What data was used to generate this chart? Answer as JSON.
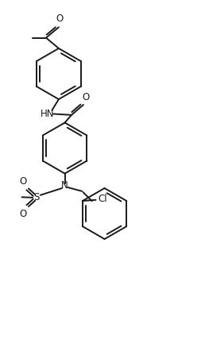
{
  "background_color": "#ffffff",
  "line_color": "#1a1a1a",
  "line_width": 1.4,
  "font_size": 8.5,
  "figsize": [
    2.58,
    4.32
  ],
  "dpi": 100,
  "xlim": [
    0,
    10
  ],
  "ylim": [
    0,
    16.8
  ]
}
